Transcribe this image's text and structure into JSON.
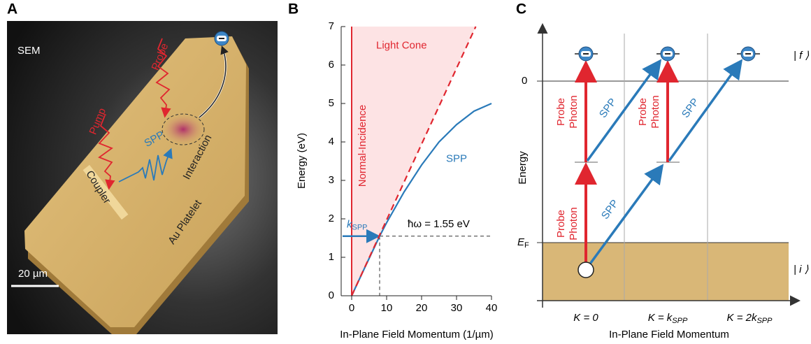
{
  "panel_a": {
    "label": "A",
    "sem": "SEM",
    "probe": "Probe",
    "pump": "Pump",
    "spp": "SPP",
    "interaction": "Interaction",
    "coupler": "Coupler",
    "platelet": "Au Platelet",
    "scale_bar": "20 µm"
  },
  "chart_data": {
    "type": "line",
    "label": "B",
    "x_label": "In-Plane Field Momentum (1/µm)",
    "y_label": "Energy (eV)",
    "xlim": [
      -3,
      40
    ],
    "ylim": [
      0,
      7
    ],
    "xticks": [
      0,
      10,
      20,
      30,
      40
    ],
    "yticks": [
      0,
      1,
      2,
      3,
      4,
      5,
      6,
      7
    ],
    "series": [
      {
        "name": "SPP",
        "color": "#2a7ab9",
        "x": [
          0,
          4,
          8,
          10,
          15,
          20,
          25,
          30,
          35,
          40
        ],
        "values": [
          0,
          0.78,
          1.55,
          1.9,
          2.7,
          3.4,
          4.0,
          4.45,
          4.8,
          5.0
        ]
      },
      {
        "name": "Light Cone",
        "color": "#e0262f",
        "x": [
          0,
          35.5
        ],
        "values": [
          0,
          7
        ]
      }
    ],
    "normal_incidence": "Normal-Incidence",
    "photon_energy": 1.55,
    "photon_label": "ħω = 1.55 eV",
    "k_spp": 8,
    "k_label": "k",
    "k_sub": "SPP"
  },
  "panel_c": {
    "label": "C",
    "y_label": "Energy",
    "zero": "0",
    "ef": "E",
    "ef_sub": "F",
    "final": "| f ⟩",
    "initial": "| i ⟩",
    "x_label": "In-Plane Field Momentum",
    "columns": [
      {
        "text": "K = 0"
      },
      {
        "text": "K = k",
        "sub": "SPP"
      },
      {
        "text": "K = 2k",
        "sub": "SPP"
      }
    ],
    "probe_labels": [
      [
        "Probe",
        "Photon"
      ],
      [
        "Probe",
        "Photon"
      ],
      [
        "Probe",
        "Photon"
      ]
    ],
    "spp_labels": [
      "SPP",
      "SPP",
      "SPP"
    ]
  }
}
